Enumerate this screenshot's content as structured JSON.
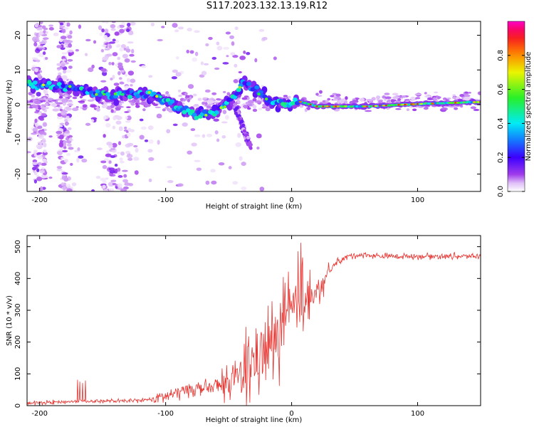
{
  "title": "S117.2023.132.13.19.R12",
  "chart_data": [
    {
      "type": "heatmap",
      "xlabel": "Height of straight line (km)",
      "ylabel": "Frequency (Hz)",
      "xlim": [
        -210,
        150
      ],
      "ylim": [
        -25,
        24
      ],
      "x_ticks": [
        -200,
        -100,
        0,
        100
      ],
      "y_ticks": [
        -20,
        -10,
        0,
        10,
        20
      ],
      "colorbar": {
        "label": "Normalized spectral amplitude",
        "range": [
          0.0,
          1.0
        ],
        "ticks": [
          0.0,
          0.2,
          0.4,
          0.6,
          0.8
        ],
        "colormap": "white-purple-blue-cyan-green-yellow-red-magenta"
      },
      "ridge": {
        "description": "main spectral trace",
        "points": [
          {
            "x": -205,
            "f": 6
          },
          {
            "x": -185,
            "f": 5.5
          },
          {
            "x": -165,
            "f": 4
          },
          {
            "x": -145,
            "f": 2.5
          },
          {
            "x": -125,
            "f": 3.5
          },
          {
            "x": -110,
            "f": 3
          },
          {
            "x": -90,
            "f": -1
          },
          {
            "x": -75,
            "f": -3
          },
          {
            "x": -60,
            "f": -2
          },
          {
            "x": -45,
            "f": 2
          },
          {
            "x": -38,
            "f": 7
          },
          {
            "x": -28,
            "f": 4
          },
          {
            "x": -15,
            "f": 0.5
          },
          {
            "x": -5,
            "f": 0
          },
          {
            "x": 5,
            "f": 1
          },
          {
            "x": 20,
            "f": -0.5
          },
          {
            "x": 60,
            "f": -0.5
          },
          {
            "x": 100,
            "f": 0.2
          },
          {
            "x": 150,
            "f": 0.8
          }
        ],
        "branch": [
          {
            "x": -45,
            "f": 0
          },
          {
            "x": -40,
            "f": -5
          },
          {
            "x": -33,
            "f": -12
          }
        ]
      }
    },
    {
      "type": "line",
      "xlabel": "Height of straight line (km)",
      "ylabel": "SNR (10 * v/v)",
      "xlim": [
        -210,
        150
      ],
      "ylim": [
        0,
        535
      ],
      "x_ticks": [
        -200,
        -100,
        0,
        100
      ],
      "y_ticks": [
        0,
        100,
        200,
        300,
        400,
        500
      ],
      "color": "#e8322e",
      "series": [
        {
          "name": "SNR",
          "x": [
            -210,
            -160,
            -140,
            -125,
            -110,
            -95,
            -80,
            -65,
            -50,
            -40,
            -30,
            -25,
            -20,
            -15,
            -10,
            -5,
            0,
            5,
            10,
            15,
            20,
            25,
            30,
            35,
            45,
            55,
            70,
            100,
            130,
            150
          ],
          "y": [
            8,
            15,
            14,
            15,
            20,
            35,
            55,
            55,
            70,
            110,
            140,
            170,
            170,
            200,
            220,
            260,
            290,
            320,
            330,
            340,
            350,
            380,
            420,
            450,
            470,
            475,
            470,
            470,
            470,
            470
          ]
        }
      ]
    }
  ]
}
